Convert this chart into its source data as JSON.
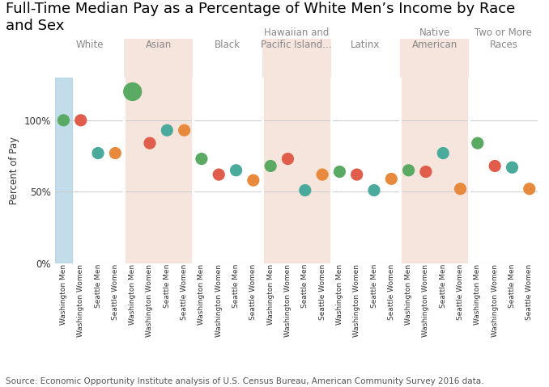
{
  "title": "Full-Time Median Pay as a Percentage of White Men’s Income by Race\nand Sex",
  "ylabel": "Percent of Pay",
  "source": "Source: Economic Opportunity Institute analysis of U.S. Census Bureau, American Community Survey 2016 data.",
  "race_groups": [
    "White",
    "Asian",
    "Black",
    "Hawaiian and\nPacific Island...",
    "Latinx",
    "Native\nAmerican",
    "Two or More\nRaces"
  ],
  "values_per_group": [
    [
      100,
      100,
      77,
      77
    ],
    [
      120,
      84,
      93,
      93
    ],
    [
      73,
      62,
      65,
      58
    ],
    [
      68,
      73,
      51,
      62
    ],
    [
      64,
      62,
      51,
      59
    ],
    [
      65,
      64,
      77,
      52
    ],
    [
      84,
      68,
      67,
      52
    ]
  ],
  "dot_colors": [
    "#5baa63",
    "#e05c4b",
    "#4aaa9b",
    "#e88a3e"
  ],
  "dot_sizes": [
    120,
    120,
    120,
    120
  ],
  "dot_sizes_special": {
    "1_0": 280
  },
  "ylim": [
    0,
    130
  ],
  "yticks": [
    0,
    50,
    100
  ],
  "yticklabels": [
    "0%",
    "50%",
    "100%"
  ],
  "background_alt": "#f5e5dc",
  "background_blue": "#a8cfe0",
  "title_fontsize": 13,
  "source_fontsize": 7.5,
  "group_label_fontsize": 8.5,
  "x_labels": [
    "Washington Men",
    "Washington Women",
    "Seattle Men",
    "Seattle Women",
    "Washington Men",
    "Washington Women",
    "Seattle Men",
    "Seattle Women",
    "Washington Men",
    "Washington Women",
    "Seattle Men",
    "Seattle Women",
    "Washington Men",
    "Washington Women",
    "Seattle Men",
    "Seattle Women",
    "Washington Men",
    "Washington Women",
    "Seattle Men",
    "Seattle Women",
    "Washington Men",
    "Washington Women",
    "Seattle Men",
    "Seattle Women",
    "Washington Men",
    "Washington Women",
    "Seattle Men",
    "Seattle Women"
  ]
}
